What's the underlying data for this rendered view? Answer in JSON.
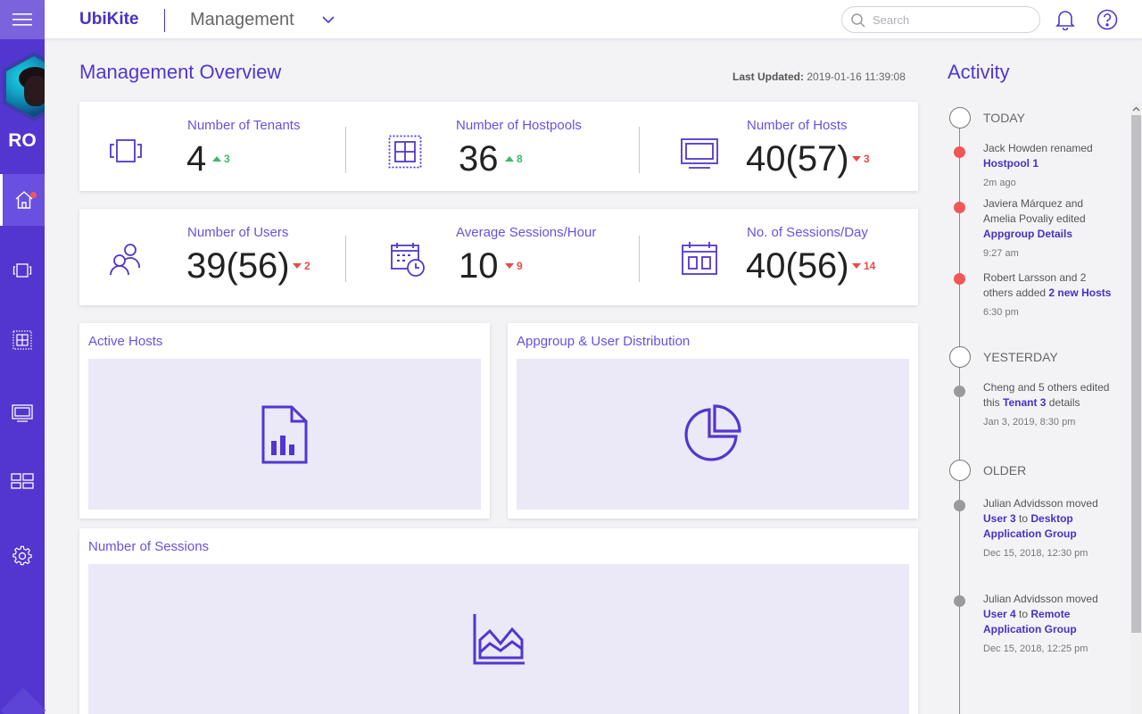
{
  "header": {
    "brand": "UbiKite",
    "section": "Management",
    "search_placeholder": "Search"
  },
  "user": {
    "initials": "RO"
  },
  "sidebar": {
    "items": [
      {
        "name": "home",
        "icon": "home-icon",
        "active": true,
        "has_notification": true
      },
      {
        "name": "tenants",
        "icon": "tenants-icon"
      },
      {
        "name": "hostpools",
        "icon": "hostpool-icon"
      },
      {
        "name": "hosts",
        "icon": "monitor-icon"
      },
      {
        "name": "appgroups",
        "icon": "dashboard-icon"
      },
      {
        "name": "settings",
        "icon": "gear-icon"
      }
    ]
  },
  "main": {
    "title": "Management Overview",
    "last_updated_label": "Last Updated:",
    "last_updated_value": "2019-01-16 11:39:08",
    "stats_row1": [
      {
        "label": "Number of Tenants",
        "value": "4",
        "delta": "3",
        "direction": "up",
        "icon": "tenants-icon"
      },
      {
        "label": "Number of Hostpools",
        "value": "36",
        "delta": "8",
        "direction": "up",
        "icon": "hostpool-icon"
      },
      {
        "label": "Number of Hosts",
        "value": "40(57)",
        "delta": "3",
        "direction": "down",
        "icon": "monitor-icon"
      }
    ],
    "stats_row2": [
      {
        "label": "Number of Users",
        "value": "39(56)",
        "delta": "2",
        "direction": "down",
        "icon": "users-icon"
      },
      {
        "label": "Average Sessions/Hour",
        "value": "10",
        "delta": "9",
        "direction": "down",
        "icon": "calendar-clock-icon"
      },
      {
        "label": "No. of Sessions/Day",
        "value": "40(56)",
        "delta": "14",
        "direction": "down",
        "icon": "calendar-icon"
      }
    ],
    "panels": {
      "active_hosts": "Active Hosts",
      "distribution": "Appgroup & User Distribution",
      "sessions": "Number of Sessions"
    }
  },
  "activity": {
    "title": "Activity",
    "groups": {
      "today": "TODAY",
      "yesterday": "YESTERDAY",
      "older": "OLDER"
    },
    "events": [
      {
        "pre": "Jack Howden renamed ",
        "link": "Hostpool 1",
        "post": "",
        "time": "2m ago"
      },
      {
        "pre": "Javiera Márquez and Amelia Povaliy edited ",
        "link": "Appgroup Details",
        "post": "",
        "time": "9:27 am"
      },
      {
        "pre": "Robert Larsson and 2 others added ",
        "link": "2 new Hosts",
        "post": "",
        "time": "6:30 pm"
      },
      {
        "pre": "Cheng and 5 others edited this ",
        "link": "Tenant 3",
        "post": " details",
        "time": "Jan 3, 2019, 8:30 pm"
      },
      {
        "pre": "Julian Advidsson moved ",
        "link": "User 3",
        "mid": " to ",
        "link2": "Desktop Application Group",
        "time": "Dec 15, 2018, 12:30 pm"
      },
      {
        "pre": "Julian Advidsson moved ",
        "link": "User 4",
        "mid": " to ",
        "link2": "Remote Application Group",
        "time": "Dec 15, 2018, 12:25 pm"
      }
    ]
  },
  "colors": {
    "accent": "#5236cf",
    "up": "#3fb96a",
    "down": "#e84b4b",
    "panel_bg": "#ebe8f8"
  }
}
